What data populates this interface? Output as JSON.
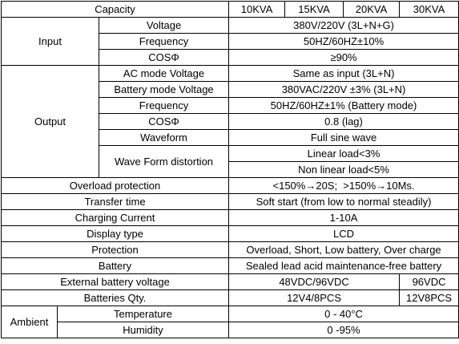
{
  "table": {
    "rows": [
      [
        "Capacity",
        "10KVA",
        "15KVA",
        "20KVA",
        "30KVA"
      ],
      [
        "Input",
        "Voltage",
        "380V/220V (3L+N+G)"
      ],
      [
        "Frequency",
        "50HZ/60HZ±10%"
      ],
      [
        "COSΦ",
        "≥90%"
      ],
      [
        "Output",
        "AC mode Voltage",
        "Same as input (3L+N)"
      ],
      [
        "Battery mode Voltage",
        "380VAC/220V ±3% (3L+N)"
      ],
      [
        "Frequency",
        "50HZ/60HZ±1% (Battery mode)"
      ],
      [
        "COSΦ",
        "0.8 (lag)"
      ],
      [
        "Waveform",
        "Full sine wave"
      ],
      [
        "Wave Form distortion",
        "Linear load<3%"
      ],
      [
        "Non linear load<5%"
      ],
      [
        "Overload protection",
        "<150%→20S;  >150%→10Ms."
      ],
      [
        "Transfer time",
        "Soft start (from low to normal steadily)"
      ],
      [
        "Charging Current",
        "1-10A"
      ],
      [
        "Display type",
        "LCD"
      ],
      [
        "Protection",
        "Overload, Short, Low battery, Over charge"
      ],
      [
        "Battery",
        "Sealed lead acid maintenance-free battery"
      ],
      [
        "External battery voltage",
        "48VDC/96VDC",
        "96VDC"
      ],
      [
        "Batteries Qty.",
        "12V4/8PCS",
        "12V8PCS"
      ],
      [
        "Ambient",
        "Temperature",
        "0 - 40°C"
      ],
      [
        "Humidity",
        "0 -95%"
      ]
    ]
  }
}
